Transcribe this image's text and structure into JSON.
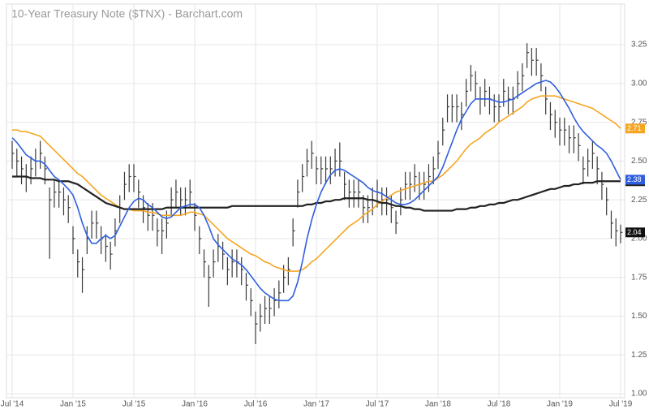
{
  "chart_data": {
    "type": "ohlc",
    "title": "10-Year Treasury Note ($TNX) - Barchart.com",
    "categories": [
      "Jul '14",
      null,
      null,
      null,
      null,
      null,
      null,
      null,
      null,
      null,
      null,
      null,
      null,
      "Jan '15",
      null,
      null,
      null,
      null,
      null,
      null,
      null,
      null,
      null,
      null,
      null,
      null,
      "Jul '15",
      null,
      null,
      null,
      null,
      null,
      null,
      null,
      null,
      null,
      null,
      null,
      null,
      "Jan '16",
      null,
      null,
      null,
      null,
      null,
      null,
      null,
      null,
      null,
      null,
      null,
      null,
      "Jul '16",
      null,
      null,
      null,
      null,
      null,
      null,
      null,
      null,
      null,
      null,
      null,
      null,
      "Jan '17",
      null,
      null,
      null,
      null,
      null,
      null,
      null,
      null,
      null,
      null,
      null,
      null,
      "Jul '17",
      null,
      null,
      null,
      null,
      null,
      null,
      null,
      null,
      null,
      null,
      null,
      null,
      "Jan '18",
      null,
      null,
      null,
      null,
      null,
      null,
      null,
      null,
      null,
      null,
      null,
      null,
      "Jul '18",
      null,
      null,
      null,
      null,
      null,
      null,
      null,
      null,
      null,
      null,
      null,
      null,
      "Jan '19",
      null,
      null,
      null,
      null,
      null,
      null,
      null,
      null,
      null,
      null,
      null,
      null,
      "Jul '19"
    ],
    "bar_color": "#3a3a3a",
    "high": [
      2.63,
      2.58,
      2.53,
      2.48,
      2.53,
      2.58,
      2.63,
      2.53,
      2.33,
      2.38,
      2.38,
      2.33,
      2.28,
      2.08,
      1.93,
      1.88,
      2.08,
      2.18,
      2.18,
      2.08,
      2.03,
      1.98,
      2.13,
      2.28,
      2.43,
      2.48,
      2.48,
      2.38,
      2.28,
      2.23,
      2.23,
      2.13,
      2.13,
      2.18,
      2.33,
      2.38,
      2.33,
      2.33,
      2.38,
      2.23,
      2.08,
      1.93,
      1.83,
      1.93,
      2.03,
      1.98,
      1.88,
      1.93,
      1.93,
      1.88,
      1.78,
      1.68,
      1.53,
      1.58,
      1.63,
      1.63,
      1.68,
      1.73,
      1.83,
      1.88,
      2.13,
      2.38,
      2.48,
      2.58,
      2.63,
      2.53,
      2.53,
      2.53,
      2.53,
      2.58,
      2.62,
      2.43,
      2.38,
      2.38,
      2.38,
      2.28,
      2.28,
      2.33,
      2.38,
      2.33,
      2.33,
      2.28,
      2.18,
      2.33,
      2.43,
      2.43,
      2.48,
      2.43,
      2.43,
      2.48,
      2.53,
      2.63,
      2.78,
      2.93,
      2.93,
      2.93,
      2.88,
      3.03,
      3.12,
      3.08,
      2.98,
      3.03,
      2.98,
      2.93,
      2.93,
      3.03,
      2.98,
      2.98,
      3.08,
      3.13,
      3.26,
      3.23,
      3.23,
      3.13,
      2.98,
      2.88,
      2.83,
      2.78,
      2.78,
      2.73,
      2.73,
      2.68,
      2.53,
      2.58,
      2.63,
      2.53,
      2.43,
      2.33,
      2.18,
      2.13,
      2.09
    ],
    "low": [
      2.45,
      2.4,
      2.35,
      2.3,
      2.35,
      2.4,
      2.45,
      2.35,
      1.87,
      2.2,
      2.2,
      2.15,
      2.1,
      1.9,
      1.75,
      1.65,
      1.9,
      2.0,
      2.0,
      1.9,
      1.85,
      1.8,
      1.95,
      2.1,
      2.25,
      2.3,
      2.3,
      2.2,
      2.1,
      2.05,
      2.05,
      1.95,
      1.9,
      2.0,
      2.15,
      2.2,
      2.15,
      2.15,
      2.2,
      2.05,
      1.9,
      1.75,
      1.56,
      1.75,
      1.85,
      1.8,
      1.7,
      1.75,
      1.75,
      1.7,
      1.6,
      1.5,
      1.32,
      1.4,
      1.45,
      1.45,
      1.5,
      1.55,
      1.65,
      1.7,
      1.95,
      2.2,
      2.3,
      2.4,
      2.45,
      2.35,
      2.35,
      2.35,
      2.35,
      2.4,
      2.4,
      2.25,
      2.2,
      2.2,
      2.2,
      2.1,
      2.1,
      2.15,
      2.2,
      2.15,
      2.15,
      2.1,
      2.03,
      2.15,
      2.25,
      2.25,
      2.3,
      2.25,
      2.25,
      2.3,
      2.35,
      2.45,
      2.6,
      2.75,
      2.75,
      2.75,
      2.7,
      2.85,
      2.95,
      2.9,
      2.8,
      2.85,
      2.8,
      2.75,
      2.75,
      2.85,
      2.8,
      2.8,
      2.9,
      2.95,
      3.1,
      3.05,
      3.05,
      2.95,
      2.8,
      2.7,
      2.65,
      2.6,
      2.6,
      2.55,
      2.55,
      2.5,
      2.35,
      2.4,
      2.45,
      2.35,
      2.25,
      2.15,
      2.0,
      1.95,
      1.97
    ],
    "close": [
      2.55,
      2.5,
      2.45,
      2.4,
      2.45,
      2.5,
      2.55,
      2.45,
      2.25,
      2.3,
      2.3,
      2.25,
      2.2,
      2.0,
      1.85,
      1.8,
      2.0,
      2.1,
      2.1,
      2.0,
      1.95,
      1.9,
      2.05,
      2.2,
      2.35,
      2.4,
      2.4,
      2.3,
      2.2,
      2.15,
      2.15,
      2.05,
      2.05,
      2.1,
      2.25,
      2.3,
      2.25,
      2.25,
      2.3,
      2.15,
      2.0,
      1.85,
      1.75,
      1.85,
      1.95,
      1.9,
      1.8,
      1.85,
      1.85,
      1.8,
      1.7,
      1.6,
      1.45,
      1.5,
      1.55,
      1.55,
      1.6,
      1.65,
      1.75,
      1.8,
      2.05,
      2.3,
      2.4,
      2.5,
      2.55,
      2.45,
      2.45,
      2.45,
      2.45,
      2.5,
      2.5,
      2.35,
      2.3,
      2.3,
      2.3,
      2.2,
      2.2,
      2.25,
      2.3,
      2.25,
      2.25,
      2.2,
      2.1,
      2.25,
      2.35,
      2.35,
      2.4,
      2.35,
      2.35,
      2.4,
      2.45,
      2.55,
      2.7,
      2.85,
      2.85,
      2.85,
      2.8,
      2.95,
      3.05,
      3.0,
      2.9,
      2.95,
      2.9,
      2.85,
      2.85,
      2.95,
      2.9,
      2.9,
      3.0,
      3.05,
      3.2,
      3.15,
      3.15,
      3.05,
      2.9,
      2.8,
      2.75,
      2.7,
      2.7,
      2.65,
      2.65,
      2.6,
      2.45,
      2.5,
      2.55,
      2.45,
      2.35,
      2.25,
      2.1,
      2.05,
      2.04
    ],
    "series": [
      {
        "color": "#f5a623",
        "values": [
          2.7,
          2.7,
          2.69,
          2.69,
          2.68,
          2.67,
          2.66,
          2.63,
          2.6,
          2.57,
          2.54,
          2.51,
          2.48,
          2.45,
          2.42,
          2.4,
          2.37,
          2.34,
          2.31,
          2.28,
          2.26,
          2.24,
          2.22,
          2.2,
          2.19,
          2.19,
          2.18,
          2.18,
          2.18,
          2.17,
          2.17,
          2.16,
          2.15,
          2.15,
          2.15,
          2.15,
          2.15,
          2.16,
          2.17,
          2.17,
          2.16,
          2.15,
          2.12,
          2.09,
          2.06,
          2.03,
          2.0,
          1.98,
          1.96,
          1.94,
          1.92,
          1.9,
          1.89,
          1.87,
          1.85,
          1.84,
          1.82,
          1.81,
          1.8,
          1.79,
          1.79,
          1.79,
          1.8,
          1.82,
          1.85,
          1.87,
          1.9,
          1.93,
          1.96,
          1.99,
          2.02,
          2.05,
          2.08,
          2.1,
          2.12,
          2.15,
          2.17,
          2.19,
          2.22,
          2.24,
          2.26,
          2.28,
          2.3,
          2.31,
          2.32,
          2.33,
          2.34,
          2.35,
          2.36,
          2.37,
          2.37,
          2.39,
          2.41,
          2.44,
          2.47,
          2.5,
          2.54,
          2.58,
          2.61,
          2.63,
          2.65,
          2.68,
          2.7,
          2.72,
          2.75,
          2.77,
          2.79,
          2.81,
          2.83,
          2.85,
          2.88,
          2.9,
          2.91,
          2.92,
          2.92,
          2.92,
          2.92,
          2.91,
          2.9,
          2.89,
          2.88,
          2.87,
          2.86,
          2.85,
          2.84,
          2.82,
          2.8,
          2.78,
          2.76,
          2.74,
          2.71
        ]
      },
      {
        "color": "#222222",
        "values": [
          2.4,
          2.4,
          2.4,
          2.4,
          2.39,
          2.39,
          2.39,
          2.38,
          2.38,
          2.38,
          2.37,
          2.37,
          2.37,
          2.36,
          2.35,
          2.33,
          2.31,
          2.29,
          2.27,
          2.25,
          2.23,
          2.22,
          2.21,
          2.2,
          2.19,
          2.19,
          2.19,
          2.19,
          2.19,
          2.19,
          2.19,
          2.19,
          2.19,
          2.2,
          2.2,
          2.2,
          2.2,
          2.2,
          2.2,
          2.2,
          2.2,
          2.2,
          2.2,
          2.2,
          2.2,
          2.2,
          2.2,
          2.21,
          2.21,
          2.21,
          2.21,
          2.21,
          2.21,
          2.21,
          2.21,
          2.21,
          2.21,
          2.21,
          2.21,
          2.21,
          2.21,
          2.21,
          2.21,
          2.22,
          2.22,
          2.23,
          2.23,
          2.24,
          2.24,
          2.25,
          2.25,
          2.26,
          2.26,
          2.26,
          2.26,
          2.26,
          2.25,
          2.25,
          2.24,
          2.23,
          2.23,
          2.22,
          2.21,
          2.21,
          2.2,
          2.2,
          2.19,
          2.19,
          2.18,
          2.18,
          2.18,
          2.18,
          2.18,
          2.18,
          2.18,
          2.19,
          2.19,
          2.19,
          2.2,
          2.2,
          2.21,
          2.21,
          2.22,
          2.22,
          2.23,
          2.23,
          2.24,
          2.25,
          2.25,
          2.26,
          2.27,
          2.28,
          2.29,
          2.3,
          2.31,
          2.32,
          2.32,
          2.33,
          2.34,
          2.34,
          2.35,
          2.35,
          2.36,
          2.36,
          2.36,
          2.37,
          2.37,
          2.37,
          2.37,
          2.37,
          2.37
        ]
      },
      {
        "color": "#2f5fe0",
        "values": [
          2.65,
          2.62,
          2.58,
          2.54,
          2.52,
          2.5,
          2.5,
          2.48,
          2.44,
          2.4,
          2.38,
          2.35,
          2.32,
          2.28,
          2.2,
          2.1,
          2.02,
          1.97,
          1.97,
          2.0,
          2.02,
          2.0,
          2.02,
          2.08,
          2.14,
          2.2,
          2.24,
          2.26,
          2.25,
          2.22,
          2.2,
          2.17,
          2.14,
          2.13,
          2.14,
          2.17,
          2.2,
          2.21,
          2.22,
          2.22,
          2.2,
          2.15,
          2.08,
          2.0,
          1.96,
          1.93,
          1.9,
          1.87,
          1.85,
          1.83,
          1.8,
          1.76,
          1.72,
          1.68,
          1.65,
          1.63,
          1.61,
          1.6,
          1.6,
          1.6,
          1.63,
          1.72,
          1.85,
          2.0,
          2.12,
          2.22,
          2.3,
          2.36,
          2.41,
          2.44,
          2.45,
          2.44,
          2.42,
          2.4,
          2.38,
          2.36,
          2.33,
          2.31,
          2.3,
          2.29,
          2.27,
          2.25,
          2.23,
          2.22,
          2.22,
          2.23,
          2.25,
          2.28,
          2.31,
          2.34,
          2.37,
          2.4,
          2.46,
          2.54,
          2.62,
          2.7,
          2.77,
          2.82,
          2.87,
          2.9,
          2.9,
          2.9,
          2.9,
          2.89,
          2.88,
          2.88,
          2.89,
          2.9,
          2.92,
          2.94,
          2.96,
          2.98,
          3.0,
          3.01,
          3.02,
          3.01,
          2.98,
          2.94,
          2.89,
          2.84,
          2.78,
          2.73,
          2.69,
          2.66,
          2.63,
          2.6,
          2.58,
          2.55,
          2.5,
          2.44,
          2.38
        ]
      }
    ],
    "ylim": [
      1.0,
      3.35
    ],
    "yticks": [
      {
        "value": 1.0,
        "label": "1.00"
      },
      1.25,
      {
        "value": 1.5,
        "label": "1.50"
      },
      1.75,
      {
        "value": 2.0,
        "label": "2.00"
      },
      2.25,
      {
        "value": 2.5,
        "label": "2.50"
      },
      2.75,
      {
        "value": 3.0,
        "label": "3.00"
      },
      3.25
    ],
    "grid": true,
    "axis_side": "right"
  }
}
